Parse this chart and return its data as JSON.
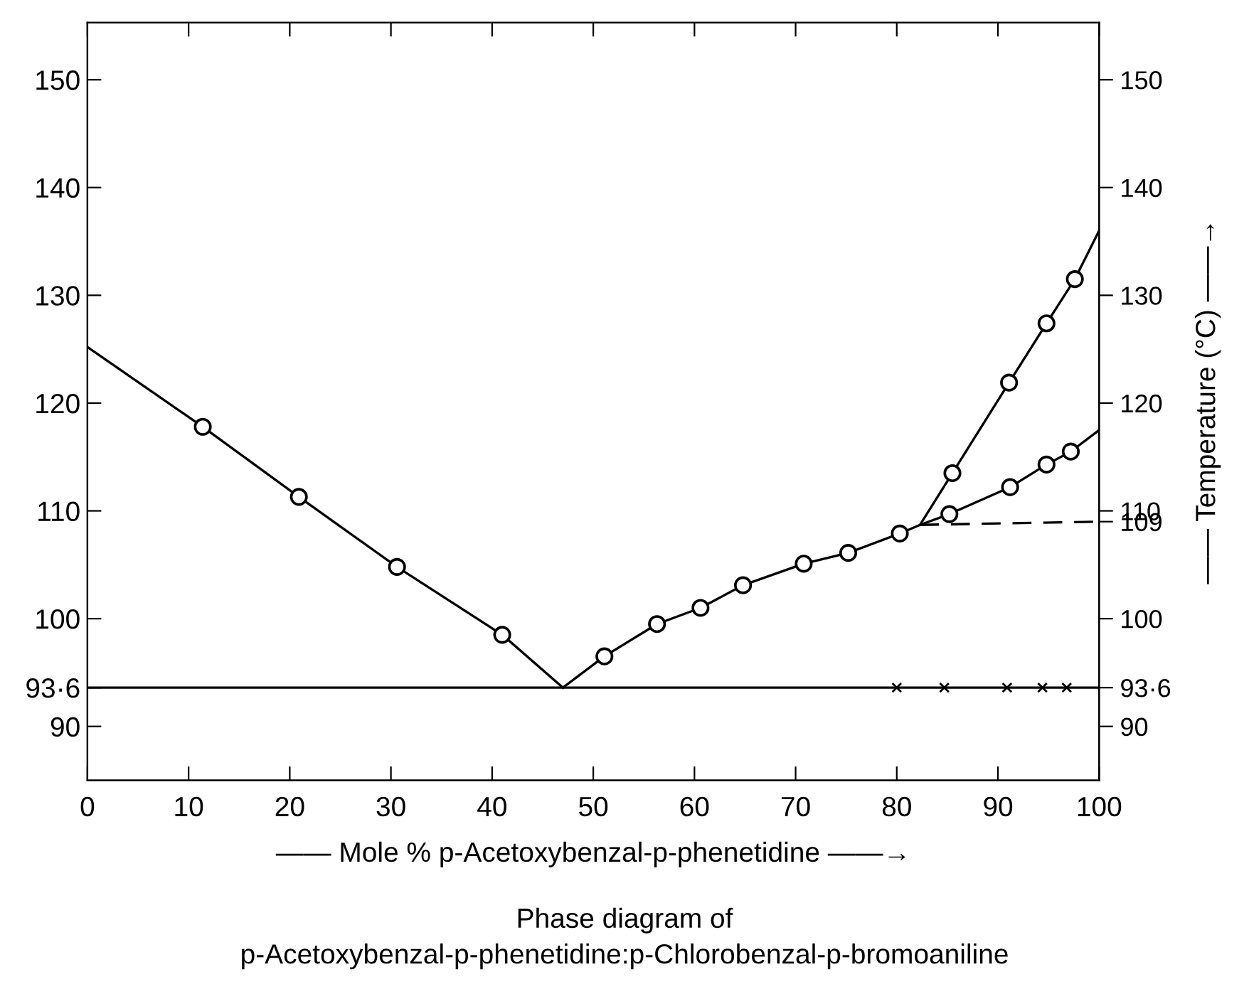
{
  "chart_data": {
    "type": "line",
    "title": "Phase diagram of\np-Acetoxybenzal-p-phenetidine:p-Chlorobenzal-p-bromoaniline",
    "xlabel": "—— Mole % p-Acetoxybenzal-p-phenetidine ——→",
    "y2label": "—— Temperature (°C) ——→",
    "xlim": [
      0,
      100
    ],
    "xticks": [
      0,
      10,
      20,
      30,
      40,
      50,
      60,
      70,
      80,
      90,
      100
    ],
    "ylim": [
      85,
      155.3
    ],
    "yticks": [
      90,
      {
        "value": 93.6,
        "label": "93·6"
      },
      100,
      110,
      120,
      130,
      140,
      150
    ],
    "y2lim": [
      85,
      155.3
    ],
    "y2ticks": [
      90,
      {
        "value": 93.6,
        "label": "93·6"
      },
      100,
      109,
      110,
      120,
      130,
      140,
      150
    ],
    "grid": false,
    "legend": false,
    "ref_lines": [
      {
        "axis": "y",
        "value": 93.6,
        "color": "#000000",
        "line_style": "solid"
      }
    ],
    "series": [
      {
        "color": "#000000",
        "marker": "none",
        "line_style": "solid",
        "x": [
          0,
          11.4,
          20.9,
          30.6,
          41.0,
          47.0
        ],
        "values": [
          125.2,
          117.8,
          111.3,
          104.8,
          98.5,
          93.6
        ]
      },
      {
        "color": "#000000",
        "marker": "none",
        "line_style": "solid",
        "x": [
          47.0,
          51.1,
          56.3,
          60.6,
          64.8,
          70.8,
          75.2,
          80.3,
          82.3,
          85.2,
          91.2,
          94.8,
          97.2,
          100
        ],
        "values": [
          93.6,
          96.5,
          99.5,
          101.0,
          103.1,
          105.1,
          106.1,
          107.9,
          108.7,
          109.7,
          112.2,
          114.3,
          115.5,
          117.5
        ]
      },
      {
        "color": "#000000",
        "marker": "none",
        "line_style": "solid",
        "x": [
          82.3,
          85.5,
          91.1,
          94.8,
          97.6,
          100
        ],
        "values": [
          108.7,
          113.5,
          121.9,
          127.4,
          131.5,
          136.0
        ]
      },
      {
        "color": "#000000",
        "marker": "none",
        "line_style": "dashed",
        "x": [
          82.3,
          100
        ],
        "values": [
          108.7,
          109
        ]
      },
      {
        "type": "scatter",
        "color": "#000000",
        "marker": "circle",
        "x": [
          11.4,
          20.9,
          30.6,
          41.0,
          51.1,
          56.3,
          60.6,
          64.8,
          70.8,
          75.2,
          80.3,
          85.2,
          91.2,
          94.8,
          97.2,
          85.5,
          91.1,
          94.8,
          97.6
        ],
        "values": [
          117.8,
          111.3,
          104.8,
          98.5,
          96.5,
          99.5,
          101.0,
          103.1,
          105.1,
          106.1,
          107.9,
          109.7,
          112.2,
          114.3,
          115.5,
          113.5,
          121.9,
          127.4,
          131.5
        ]
      },
      {
        "type": "scatter",
        "color": "#000000",
        "marker": "cross",
        "x": [
          80.0,
          84.7,
          90.9,
          94.4,
          96.8
        ],
        "values": [
          93.6,
          93.6,
          93.6,
          93.6,
          93.6
        ]
      }
    ]
  }
}
